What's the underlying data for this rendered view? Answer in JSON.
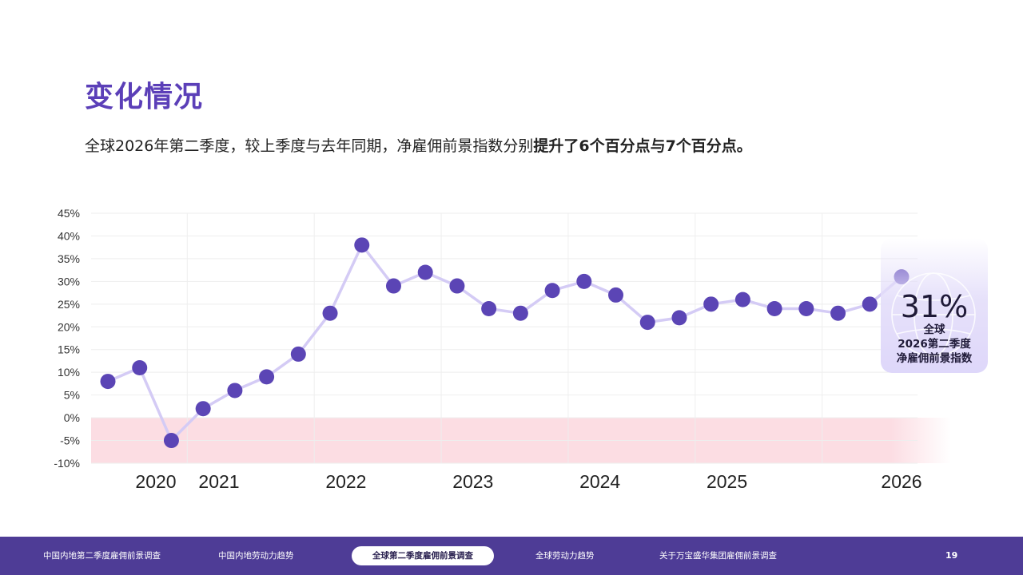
{
  "header": {
    "title": "变化情况",
    "subtitle_plain": "全球2026年第二季度，较上季度与去年同期，净雇佣前景指数分别",
    "subtitle_bold": "提升了6个百分点与7个百分点。"
  },
  "callout": {
    "value": "31%",
    "line1": "全球",
    "line2": "2026第二季度",
    "line3": "净雇佣前景指数"
  },
  "chart_data": {
    "type": "line",
    "title": "",
    "xlabel": "",
    "ylabel": "",
    "ylim": [
      -10,
      45
    ],
    "y_ticks": [
      "45%",
      "40%",
      "35%",
      "30%",
      "25%",
      "20%",
      "15%",
      "10%",
      "5%",
      "0%",
      "-5%",
      "-10%"
    ],
    "year_labels": [
      "2020",
      "2021",
      "2022",
      "2023",
      "2024",
      "2025",
      "2026"
    ],
    "series": [
      {
        "values": [
          8,
          11,
          -5,
          2,
          6,
          9,
          14,
          23,
          38,
          29,
          32,
          29,
          24,
          23,
          28,
          30,
          27,
          21,
          22,
          25,
          26,
          24,
          24,
          23,
          25,
          31
        ]
      }
    ],
    "negative_band": [
      -10,
      0
    ],
    "colors": {
      "line": "#d4cbf5",
      "marker": "#5b45b5",
      "negative_band": "#fcdde3",
      "grid": "#eeeeee"
    },
    "grid": true
  },
  "footer": {
    "nav": [
      {
        "label": "中国内地第二季度雇佣前景调查",
        "active": false
      },
      {
        "label": "中国内地劳动力趋势",
        "active": false
      },
      {
        "label": "全球第二季度雇佣前景调查",
        "active": true
      },
      {
        "label": "全球劳动力趋势",
        "active": false
      },
      {
        "label": "关于万宝盛华集团雇佣前景调查",
        "active": false
      }
    ],
    "page_number": "19"
  }
}
